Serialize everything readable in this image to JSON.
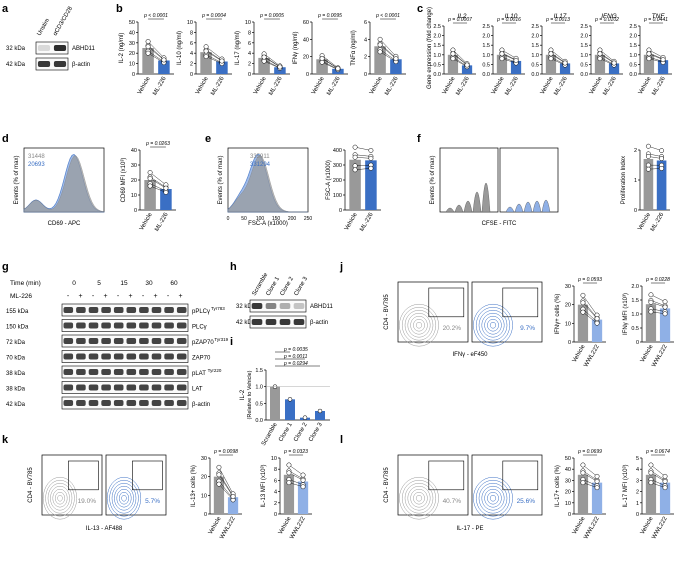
{
  "panel_letters": [
    "a",
    "b",
    "c",
    "d",
    "e",
    "f",
    "g",
    "h",
    "i",
    "j",
    "k",
    "l"
  ],
  "colors": {
    "gray": "#999999",
    "blue": "#3a6fc4",
    "light_blue": "#8fb0e6",
    "line": "#000000",
    "band": "#222222"
  },
  "panel_a": {
    "lanes": [
      "Unstim",
      "αCD3/CD28"
    ],
    "rows": [
      {
        "kda": "32 kDa",
        "label": "ABHD11"
      },
      {
        "kda": "42 kDa",
        "label": "β-actin"
      }
    ]
  },
  "panel_b": {
    "groups": [
      "Vehicle",
      "ML-226"
    ],
    "plots": [
      {
        "ylabel": "IL-2 (ng/ml)",
        "p": "p < 0.0001",
        "ticks": [
          "0",
          "10",
          "20",
          "30",
          "40",
          "50"
        ],
        "vehicle": 25,
        "treated": 13
      },
      {
        "ylabel": "IL-10 (ng/ml)",
        "p": "p = 0.0004",
        "ticks": [
          "0",
          "2",
          "4",
          "6",
          "8",
          "10"
        ],
        "vehicle": 4.2,
        "treated": 2.4
      },
      {
        "ylabel": "IL-17 (ng/ml)",
        "p": "p = 0.0005",
        "ticks": [
          "0",
          "2",
          "4",
          "6",
          "8",
          "10"
        ],
        "vehicle": 3.1,
        "treated": 1.3
      },
      {
        "ylabel": "IFNγ (ng/ml)",
        "p": "p = 0.0095",
        "ticks": [
          "0",
          "20",
          "40",
          "60"
        ],
        "vehicle": 17,
        "treated": 6
      },
      {
        "ylabel": "TNFα (ng/ml)",
        "p": "p < 0.0001",
        "ticks": [
          "0",
          "2",
          "4",
          "6"
        ],
        "vehicle": 3.2,
        "treated": 1.7
      }
    ]
  },
  "panel_c": {
    "ylabel": "Gene expression (fold change)",
    "ticks": [
      "0.0",
      "0.5",
      "1.0",
      "1.5",
      "2.0",
      "2.5"
    ],
    "groups": [
      "Vehicle",
      "ML-226"
    ],
    "plots": [
      {
        "gene": "IL2",
        "p": "p = 0.0007",
        "vehicle": 1.0,
        "treated": 0.45
      },
      {
        "gene": "IL10",
        "p": "p = 0.0016",
        "vehicle": 1.0,
        "treated": 0.68
      },
      {
        "gene": "IL17",
        "p": "p = 0.0013",
        "vehicle": 1.0,
        "treated": 0.55
      },
      {
        "gene": "IFNG",
        "p": "p = 0.0102",
        "vehicle": 1.0,
        "treated": 0.55
      },
      {
        "gene": "TNF",
        "p": "p = 0.0441",
        "vehicle": 1.0,
        "treated": 0.72
      }
    ]
  },
  "panel_d": {
    "hist_ylabel": "Events (% of max)",
    "hist_xlabel": "CD69 - APC",
    "mfi_gray": "31448",
    "mfi_blue": "20693",
    "bar": {
      "ylabel": "CD69 MFI (x10³)",
      "p": "p = 0.0263",
      "ticks": [
        "0",
        "10",
        "20",
        "30",
        "40"
      ],
      "vehicle": 20,
      "treated": 14,
      "groups": [
        "Vehicle",
        "ML-226"
      ]
    }
  },
  "panel_e": {
    "hist_ylabel": "Events (% of max)",
    "hist_xlabel": "FSC-A (x1000)",
    "xticks": [
      "0",
      "50",
      "100",
      "150",
      "200",
      "250"
    ],
    "mfi_gray": "335911",
    "mfi_blue": "331294",
    "bar": {
      "ylabel": "FSC-A (x1000)",
      "ticks": [
        "0",
        "100",
        "200",
        "300",
        "400"
      ],
      "vehicle": 335,
      "treated": 331,
      "groups": [
        "Vehicle",
        "ML-226"
      ]
    }
  },
  "panel_f": {
    "hist_ylabel": "Events (% of max)",
    "hist_xlabel": "CFSE - FITC",
    "bar": {
      "ylabel": "Proliferation Index",
      "ticks": [
        "0",
        "1",
        "2"
      ],
      "vehicle": 1.7,
      "treated": 1.65,
      "groups": [
        "Vehicle",
        "ML-226"
      ]
    }
  },
  "panel_g": {
    "time_label": "Time (min)",
    "times": [
      "0",
      "5",
      "15",
      "30",
      "60"
    ],
    "treat_label": "ML-226",
    "signs": [
      "-",
      "+",
      "-",
      "+",
      "-",
      "+",
      "-",
      "+",
      "-",
      "+"
    ],
    "rows": [
      {
        "kda": "155 kDa",
        "label": "pPLCγ",
        "sup": "Tyr783"
      },
      {
        "kda": "150 kDa",
        "label": "PLCγ",
        "sup": ""
      },
      {
        "kda": "72 kDa",
        "label": "pZAP70",
        "sup": "Tyr319"
      },
      {
        "kda": "70 kDa",
        "label": "ZAP70",
        "sup": ""
      },
      {
        "kda": "38 kDa",
        "label": "pLAT",
        "sup": "Tyr220"
      },
      {
        "kda": "38 kDa",
        "label": "LAT",
        "sup": ""
      },
      {
        "kda": "42 kDa",
        "label": "β-actin",
        "sup": ""
      }
    ]
  },
  "panel_h": {
    "lanes": [
      "Scramble",
      "Clone 1",
      "Clone 2",
      "Clone 3"
    ],
    "rows": [
      {
        "kda": "32 kDa",
        "label": "ABHD11"
      },
      {
        "kda": "42 kDa",
        "label": "β-actin"
      }
    ]
  },
  "panel_i": {
    "ylabel": "IL-2",
    "ylabel2": "(Relative to Vehicle)",
    "ticks": [
      "0.0",
      "0.5",
      "1.0",
      "1.5"
    ],
    "categories": [
      "Scramble",
      "Clone 1",
      "Clone 2",
      "Clone 3"
    ],
    "values": [
      1.0,
      0.62,
      0.07,
      0.27
    ],
    "pvalues": [
      "p = 0.0035",
      "p = 0.0011",
      "p = 0.0294"
    ]
  },
  "panel_j": {
    "ylabel": "CD4 - BV785",
    "xlabel": "IFNγ - eF450",
    "pct_gray": "20.2%",
    "pct_blue": "9.7%",
    "bar1": {
      "ylabel": "IFNγ+ cells (%)",
      "p": "p = 0.0593",
      "ticks": [
        "0",
        "10",
        "20",
        "30"
      ],
      "vehicle": 20,
      "treated": 12,
      "groups": [
        "Vehicle",
        "WWL222"
      ]
    },
    "bar2": {
      "ylabel": "IFNγ MFI (x10³)",
      "p": "p = 0.0228",
      "ticks": [
        "0",
        "0.5",
        "1.0",
        "1.5",
        "2.0"
      ],
      "vehicle": 1.35,
      "treated": 1.2,
      "groups": [
        "Vehicle",
        "WWL222"
      ]
    }
  },
  "panel_k": {
    "ylabel": "CD4 - BV785",
    "xlabel": "IL-13 - AF488",
    "pct_gray": "19.0%",
    "pct_blue": "5.7%",
    "bar1": {
      "ylabel": "IL-13+ cells (%)",
      "p": "p = 0.0098",
      "ticks": [
        "0",
        "10",
        "20",
        "30"
      ],
      "vehicle": 20,
      "treated": 9,
      "groups": [
        "Vehicle",
        "WWL222"
      ]
    },
    "bar2": {
      "ylabel": "IL-13 MFI (x10³)",
      "p": "p = 0.0323",
      "ticks": [
        "0",
        "2",
        "4",
        "6",
        "8",
        "10"
      ],
      "vehicle": 7,
      "treated": 5.8,
      "groups": [
        "Vehicle",
        "WWL222"
      ]
    }
  },
  "panel_l": {
    "ylabel": "CD4 - BV785",
    "xlabel": "IL-17 - PE",
    "pct_gray": "40.7%",
    "pct_blue": "25.6%",
    "bar1": {
      "ylabel": "IL-17+ cells (%)",
      "p": "p = 0.0699",
      "ticks": [
        "0",
        "10",
        "20",
        "30",
        "40",
        "50"
      ],
      "vehicle": 35,
      "treated": 28,
      "groups": [
        "Vehicle",
        "WWL222"
      ]
    },
    "bar2": {
      "ylabel": "IL-17 MFI (x10³)",
      "p": "p = 0.0674",
      "ticks": [
        "0",
        "1",
        "2",
        "3",
        "4",
        "5"
      ],
      "vehicle": 3.5,
      "treated": 2.8,
      "groups": [
        "Vehicle",
        "WWL222"
      ]
    }
  }
}
